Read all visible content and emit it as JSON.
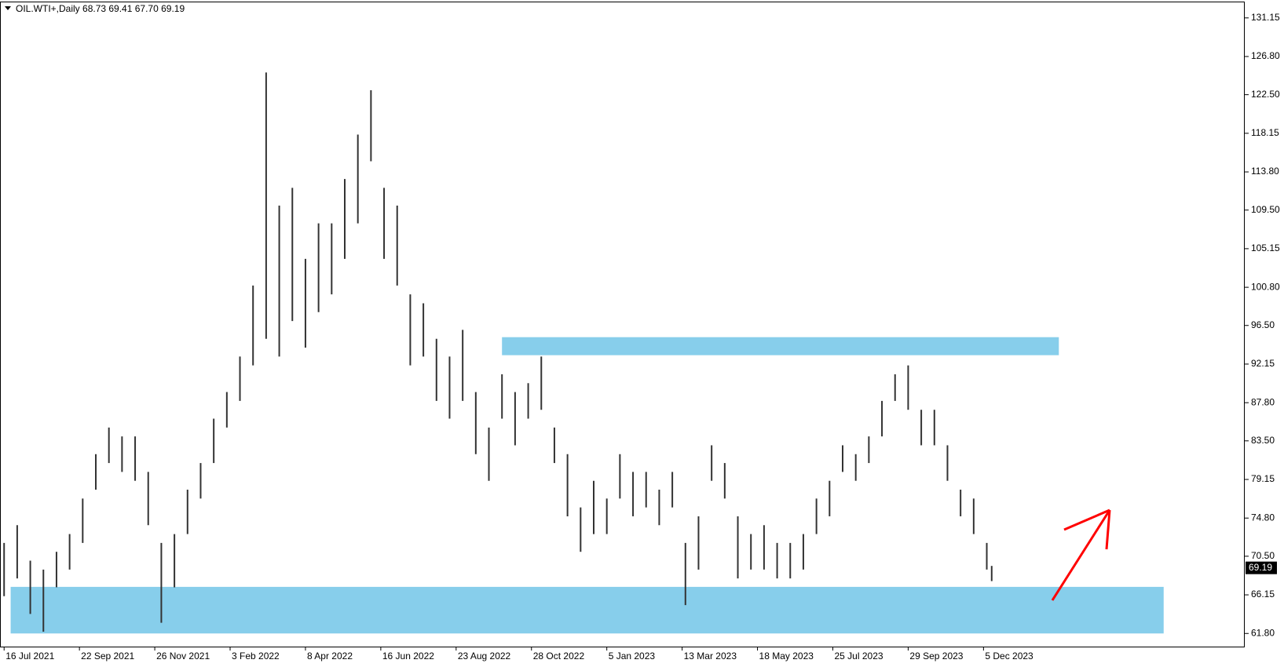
{
  "chart_data": {
    "type": "range-bar",
    "title": "OIL.WTI+,Daily  68.73 69.41 67.70 69.19",
    "x": [
      0,
      8,
      16,
      24,
      32,
      40,
      48,
      56,
      64,
      72,
      80,
      88,
      96,
      104,
      112,
      120,
      128,
      136,
      144,
      152,
      160,
      168,
      176,
      184,
      192,
      200,
      208,
      216,
      224,
      232,
      240,
      248,
      256,
      264,
      272,
      280,
      288,
      296,
      304,
      312,
      320,
      328,
      336,
      344,
      352,
      360,
      368,
      376,
      384,
      392,
      400,
      408,
      416,
      424,
      432,
      440,
      448,
      456,
      464,
      472,
      480,
      488,
      496,
      504,
      512,
      520,
      528,
      536,
      544,
      552,
      560,
      568,
      576,
      584,
      592,
      600,
      603
    ],
    "high": [
      72,
      74,
      70,
      69,
      71,
      73,
      77,
      82,
      85,
      84,
      84,
      80,
      72,
      73,
      78,
      81,
      86,
      89,
      93,
      101,
      125,
      110,
      112,
      104,
      108,
      108,
      113,
      118,
      123,
      112,
      110,
      100,
      99,
      95,
      93,
      96,
      89,
      85,
      91,
      89,
      90,
      93,
      85,
      82,
      76,
      79,
      77,
      82,
      80,
      80,
      78,
      80,
      72,
      75,
      83,
      81,
      75,
      73,
      74,
      72,
      72,
      73,
      77,
      79,
      83,
      82,
      84,
      88,
      91,
      92,
      87,
      87,
      83,
      78,
      77,
      72,
      69.41
    ],
    "low": [
      66,
      68,
      64,
      62,
      67,
      69,
      72,
      78,
      81,
      80,
      79,
      74,
      63,
      67,
      73,
      77,
      81,
      85,
      88,
      92,
      95,
      93,
      97,
      94,
      98,
      100,
      104,
      108,
      115,
      104,
      101,
      92,
      93,
      88,
      86,
      88,
      82,
      79,
      86,
      83,
      86,
      87,
      81,
      75,
      71,
      73,
      73,
      77,
      75,
      76,
      74,
      76,
      65,
      69,
      79,
      77,
      68,
      69,
      69,
      68,
      68,
      69,
      73,
      75,
      80,
      79,
      81,
      84,
      88,
      87,
      83,
      83,
      79,
      75,
      73,
      69,
      67.7
    ],
    "color": "#333333",
    "last_price": 69.19,
    "zones": [
      {
        "x": [
          304,
          644
        ],
        "y": [
          93.15,
          95.18
        ]
      },
      {
        "x": [
          4,
          708
        ],
        "y": [
          61.8,
          67.05
        ]
      }
    ],
    "zone_color": "#87ceeb",
    "xlim": [
      -2.5,
      757.5
    ],
    "ylim": [
      60.32,
      132.99
    ],
    "xticks": [
      {
        "value": 0,
        "label": "16 Jul 2021"
      },
      {
        "value": 46,
        "label": "22 Sep 2021"
      },
      {
        "value": 92,
        "label": "26 Nov 2021"
      },
      {
        "value": 138,
        "label": "3 Feb 2022"
      },
      {
        "value": 184,
        "label": "8 Apr 2022"
      },
      {
        "value": 230,
        "label": "16 Jun 2022"
      },
      {
        "value": 276,
        "label": "23 Aug 2022"
      },
      {
        "value": 322,
        "label": "28 Oct 2022"
      },
      {
        "value": 368,
        "label": "5 Jan 2023"
      },
      {
        "value": 414,
        "label": "13 Mar 2023"
      },
      {
        "value": 460,
        "label": "18 May 2023"
      },
      {
        "value": 506,
        "label": "25 Jul 2023"
      },
      {
        "value": 552,
        "label": "29 Sep 2023"
      },
      {
        "value": 598,
        "label": "5 Dec 2023"
      }
    ],
    "yticks": [
      {
        "value": 61.8,
        "label": "61.80"
      },
      66.15,
      {
        "value": 70.5,
        "label": "70.50"
      },
      {
        "value": 74.8,
        "label": "74.80"
      },
      79.15,
      {
        "value": 83.5,
        "label": "83.50"
      },
      {
        "value": 87.8,
        "label": "87.80"
      },
      92.15,
      {
        "value": 96.5,
        "label": "96.50"
      },
      {
        "value": 100.8,
        "label": "100.80"
      },
      105.15,
      {
        "value": 109.5,
        "label": "109.50"
      },
      {
        "value": 113.8,
        "label": "113.80"
      },
      118.15,
      {
        "value": 122.5,
        "label": "122.50"
      },
      {
        "value": 126.8,
        "label": "126.80"
      },
      131.15
    ]
  }
}
